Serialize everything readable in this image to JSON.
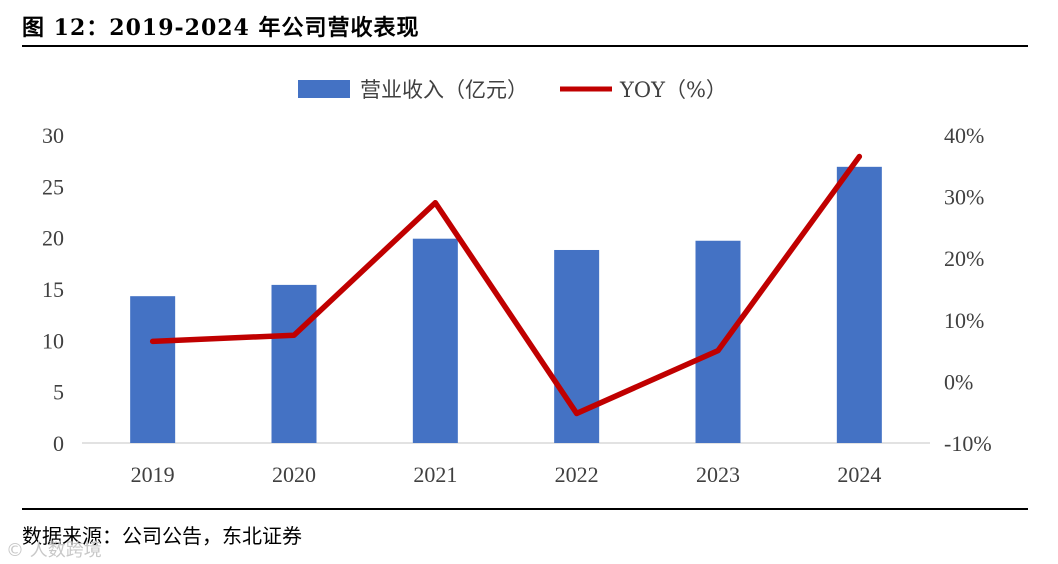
{
  "figure": {
    "title": "图 12：2019-2024 年公司营收表现",
    "source": "数据来源：公司公告，东北证券",
    "watermark": "© 人数跨境"
  },
  "colors": {
    "bar": "#4472C4",
    "line": "#C00000",
    "axis": "#d9d9d9",
    "text": "#404040"
  },
  "chart_data": {
    "type": "bar",
    "title": "2019-2024 年公司营收表现",
    "categories": [
      "2019",
      "2020",
      "2021",
      "2022",
      "2023",
      "2024"
    ],
    "series": [
      {
        "name": "营业收入（亿元）",
        "type": "bar",
        "axis": "left",
        "values": [
          14.3,
          15.4,
          19.9,
          18.8,
          19.7,
          26.9
        ]
      },
      {
        "name": "YOY（%）",
        "type": "line",
        "axis": "right",
        "values": [
          6.5,
          7.5,
          29.0,
          -5.2,
          5.0,
          36.5
        ]
      }
    ],
    "y_left": {
      "min": 0,
      "max": 30,
      "ticks": [
        "0",
        "5",
        "10",
        "15",
        "20",
        "25",
        "30"
      ]
    },
    "y_right": {
      "min": -10,
      "max": 40,
      "ticks": [
        "-10%",
        "0%",
        "10%",
        "20%",
        "30%",
        "40%"
      ]
    },
    "legend": {
      "position": "top-center",
      "entries": [
        "营业收入（亿元）",
        "YOY（%）"
      ]
    }
  }
}
